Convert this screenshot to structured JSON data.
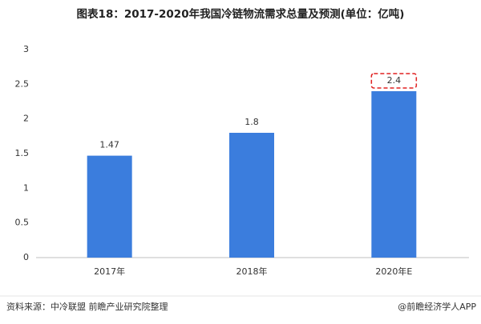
{
  "chart_data": {
    "type": "bar",
    "title": "图表18：2017-2020年我国冷链物流需求总量及预测(单位：亿吨)",
    "categories": [
      "2017年",
      "2018年",
      "2020年E"
    ],
    "values": [
      1.47,
      1.8,
      2.4
    ],
    "color": "#3b7ddd",
    "ylim": [
      0,
      3
    ],
    "yticks": [
      0,
      0.5,
      1,
      1.5,
      2,
      2.5,
      3
    ],
    "grid": false,
    "source": "资料来源：中冷联盟 前瞻产业研究院整理",
    "footer": "@前瞻经济学人APP"
  }
}
